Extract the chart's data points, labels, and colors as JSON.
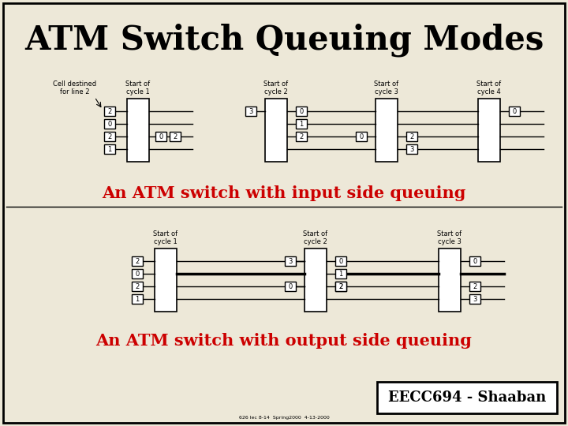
{
  "title": "ATM Switch Queuing Modes",
  "caption1": "An ATM switch with input side queuing",
  "caption2": "An ATM switch with output side queuing",
  "footer": "EECC694 - Shaaban",
  "footer_sub": "626 lec 8-14  Spring2000  4-13-2000",
  "bg_color": "#ede8d8",
  "title_color": "#000000",
  "caption_color": "#cc0000"
}
